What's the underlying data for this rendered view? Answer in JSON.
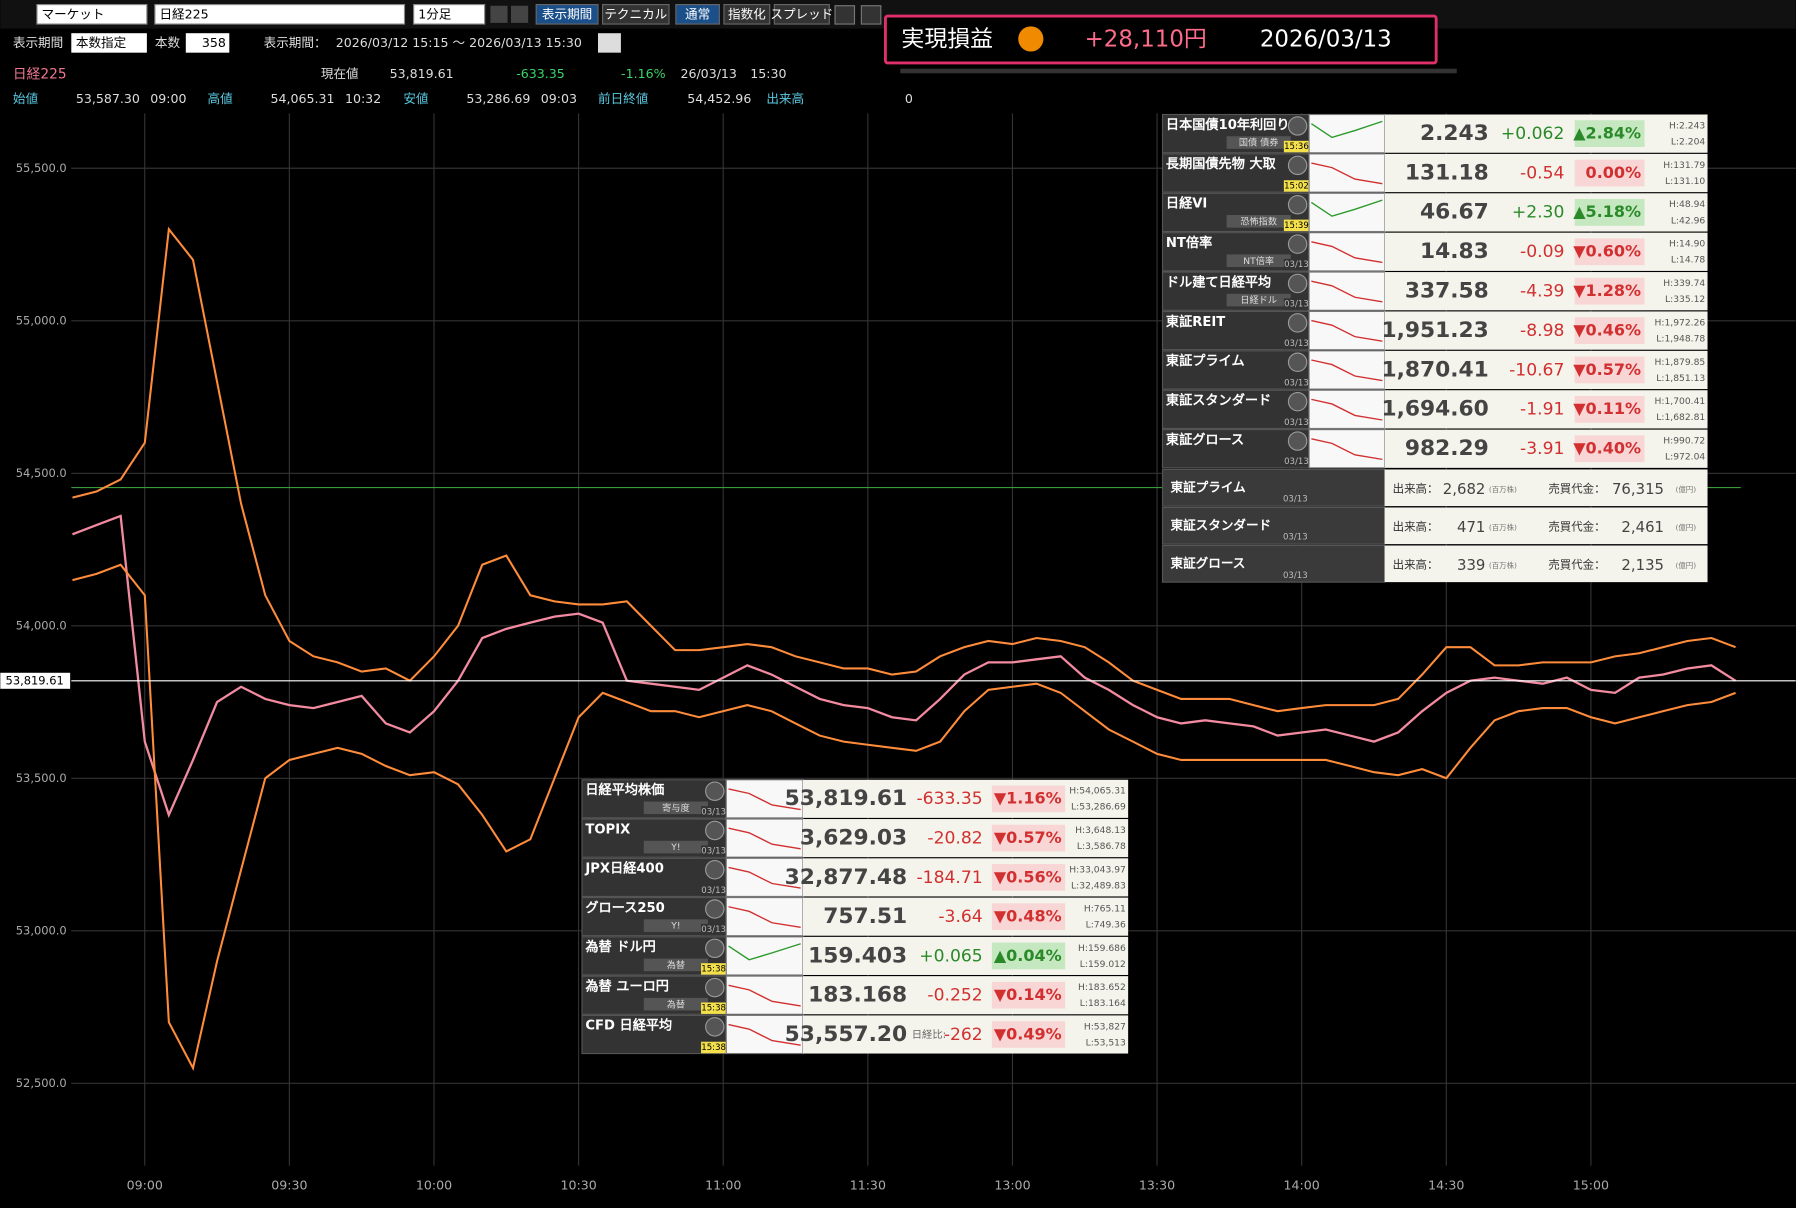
{
  "toolbar": {
    "market": "マーケット",
    "symbol": "日経225",
    "interval": "1分足",
    "buttons": [
      "表示期間",
      "テクニカル",
      "通常",
      "指数化",
      "スプレッド"
    ]
  },
  "period": {
    "label": "表示期間",
    "mode": "本数指定",
    "count_label": "本数",
    "count": 358,
    "range_label": "表示期間：",
    "range": "2026/03/12 15:15 ～ 2026/03/13 15:30"
  },
  "profit": {
    "label": "実現損益",
    "amount": "+28,110円",
    "date": "2026/03/13"
  },
  "quote": {
    "symbol": "日経225",
    "last_label": "現在値",
    "last": "53,819.61",
    "change": "-633.35",
    "change_pct": "-1.16%",
    "date": "26/03/13",
    "time": "15:30",
    "open_label": "始値",
    "open": "53,587.30",
    "open_time": "09:00",
    "high_label": "高値",
    "high": "54,065.31",
    "high_time": "10:32",
    "low_label": "安値",
    "low": "53,286.69",
    "low_time": "09:03",
    "prev_label": "前日終値",
    "prev": "54,452.96",
    "volume_label": "出来高",
    "volume": "0"
  },
  "chart_data": {
    "type": "line",
    "categories": [
      null,
      null,
      null,
      "09:00",
      null,
      null,
      null,
      null,
      null,
      "09:30",
      null,
      null,
      null,
      null,
      null,
      "10:00",
      null,
      null,
      null,
      null,
      null,
      "10:30",
      null,
      null,
      null,
      null,
      null,
      "11:00",
      null,
      null,
      null,
      null,
      null,
      "11:30",
      null,
      null,
      null,
      null,
      null,
      "13:00",
      null,
      null,
      null,
      null,
      null,
      "13:30",
      null,
      null,
      null,
      null,
      null,
      "14:00",
      null,
      null,
      null,
      null,
      null,
      "14:30",
      null,
      null,
      null,
      null,
      null,
      "15:00",
      null,
      null,
      null,
      null,
      null,
      null
    ],
    "series": [
      {
        "color": "#f28aa0",
        "values": [
          54300,
          54330,
          54360,
          53620,
          53380,
          53560,
          53750,
          53800,
          53760,
          53740,
          53730,
          53750,
          53770,
          53680,
          53650,
          53720,
          53820,
          53960,
          53990,
          54010,
          54030,
          54040,
          54010,
          53820,
          53810,
          53800,
          53790,
          53830,
          53870,
          53840,
          53800,
          53760,
          53740,
          53730,
          53700,
          53690,
          53760,
          53840,
          53880,
          53880,
          53890,
          53900,
          53830,
          53790,
          53740,
          53700,
          53680,
          53690,
          53680,
          53670,
          53640,
          53650,
          53660,
          53640,
          53620,
          53650,
          53720,
          53780,
          53820,
          53830,
          53820,
          53810,
          53830,
          53790,
          53780,
          53830,
          53840,
          53860,
          53870,
          53819.61
        ]
      },
      {
        "color": "#ff8c3a",
        "values": [
          54420,
          54440,
          54480,
          54600,
          55300,
          55200,
          54800,
          54400,
          54100,
          53950,
          53900,
          53880,
          53850,
          53860,
          53820,
          53900,
          54000,
          54200,
          54230,
          54100,
          54080,
          54070,
          54070,
          54080,
          54000,
          53920,
          53920,
          53930,
          53940,
          53930,
          53900,
          53880,
          53860,
          53860,
          53840,
          53850,
          53900,
          53930,
          53950,
          53940,
          53960,
          53950,
          53930,
          53880,
          53820,
          53790,
          53760,
          53760,
          53760,
          53740,
          53720,
          53730,
          53740,
          53740,
          53740,
          53760,
          53840,
          53930,
          53930,
          53870,
          53870,
          53880,
          53880,
          53880,
          53900,
          53910,
          53930,
          53950,
          53960,
          53930
        ]
      },
      {
        "color": "#ff8c3a",
        "values": [
          54150,
          54170,
          54200,
          54100,
          52700,
          52550,
          52900,
          53200,
          53500,
          53560,
          53580,
          53600,
          53580,
          53540,
          53510,
          53520,
          53480,
          53380,
          53260,
          53300,
          53500,
          53700,
          53780,
          53750,
          53720,
          53720,
          53700,
          53720,
          53740,
          53720,
          53680,
          53640,
          53620,
          53610,
          53600,
          53590,
          53620,
          53720,
          53790,
          53800,
          53810,
          53780,
          53720,
          53660,
          53620,
          53580,
          53560,
          53560,
          53560,
          53560,
          53560,
          53560,
          53560,
          53540,
          53520,
          53510,
          53530,
          53500,
          53600,
          53690,
          53720,
          53730,
          53730,
          53700,
          53680,
          53700,
          53720,
          53740,
          53750,
          53780
        ]
      }
    ],
    "ylim": [
      52230,
      55680
    ],
    "yticks": [
      {
        "value": 52500,
        "label": "52,500.0"
      },
      {
        "value": 53000,
        "label": "53,000.0"
      },
      {
        "value": 53500,
        "label": "53,500.0"
      },
      {
        "value": 54000,
        "label": "54,000.0"
      },
      {
        "value": 54500,
        "label": "54,500.0"
      },
      {
        "value": 55000,
        "label": "55,000.0"
      },
      {
        "value": 55500,
        "label": "55,500.0"
      }
    ],
    "grid": true,
    "current_price": {
      "value": 53819.61,
      "label": "53,819.61",
      "color": "#ffffff"
    },
    "reference_line": {
      "value": 54452.96,
      "color": "#3c9a3c"
    }
  },
  "right_panel": {
    "rows": [
      {
        "name": "日本国債10年利回り",
        "sub": "国債 債券",
        "time": "15:36",
        "value": "2.243",
        "change": "+0.062",
        "pct": "▲2.84%",
        "high": "H:2.243",
        "low": "L:2.204"
      },
      {
        "name": "長期国債先物 大取",
        "time": "15:02",
        "value": "131.18",
        "change": "-0.54",
        "pct": "0.00%",
        "high": "H:131.79",
        "low": "L:131.10"
      },
      {
        "name": "日経VI",
        "sub": "恐怖指数",
        "time": "15:39",
        "value": "46.67",
        "change": "+2.30",
        "pct": "▲5.18%",
        "high": "H:48.94",
        "low": "L:42.96"
      },
      {
        "name": "NT倍率",
        "sub": "NT倍率",
        "time": "03/13",
        "value": "14.83",
        "change": "-0.09",
        "pct": "▼0.60%",
        "high": "H:14.90",
        "low": "L:14.78"
      },
      {
        "name": "ドル建て日経平均",
        "sub": "日経ドル",
        "time": "03/13",
        "value": "337.58",
        "change": "-4.39",
        "pct": "▼1.28%",
        "high": "H:339.74",
        "low": "L:335.12"
      },
      {
        "name": "東証REIT",
        "time": "03/13",
        "value": "1,951.23",
        "change": "-8.98",
        "pct": "▼0.46%",
        "high": "H:1,972.26",
        "low": "L:1,948.78"
      },
      {
        "name": "東証プライム",
        "time": "03/13",
        "value": "1,870.41",
        "change": "-10.67",
        "pct": "▼0.57%",
        "high": "H:1,879.85",
        "low": "L:1,851.13"
      },
      {
        "name": "東証スタンダード",
        "time": "03/13",
        "value": "1,694.60",
        "change": "-1.91",
        "pct": "▼0.11%",
        "high": "H:1,700.41",
        "low": "L:1,682.81"
      },
      {
        "name": "東証グロース",
        "time": "03/13",
        "value": "982.29",
        "change": "-3.91",
        "pct": "▼0.40%",
        "high": "H:990.72",
        "low": "L:972.04"
      }
    ],
    "volume_rows": [
      {
        "name": "東証プライム",
        "time": "03/13",
        "volume_label": "出来高：",
        "volume": "2,682",
        "volume_unit": "(百万株)",
        "amount_label": "売買代金：",
        "amount": "76,315",
        "amount_unit": "(億円)"
      },
      {
        "name": "東証スタンダード",
        "time": "03/13",
        "volume_label": "出来高：",
        "volume": "471",
        "volume_unit": "(百万株)",
        "amount_label": "売買代金：",
        "amount": "2,461",
        "amount_unit": "(億円)"
      },
      {
        "name": "東証グロース",
        "time": "03/13",
        "volume_label": "出来高：",
        "volume": "339",
        "volume_unit": "(百万株)",
        "amount_label": "売買代金：",
        "amount": "2,135",
        "amount_unit": "(億円)"
      }
    ]
  },
  "bottom_panel": {
    "rows": [
      {
        "name": "日経平均株価",
        "sub": "寄与度",
        "time": "03/13",
        "value": "53,819.61",
        "change": "-633.35",
        "pct": "▼1.16%",
        "high": "H:54,065.31",
        "low": "L:53,286.69"
      },
      {
        "name": "TOPIX",
        "sub": "Y!",
        "time": "03/13",
        "value": "3,629.03",
        "change": "-20.82",
        "pct": "▼0.57%",
        "high": "H:3,648.13",
        "low": "L:3,586.78"
      },
      {
        "name": "JPX日経400",
        "time": "03/13",
        "value": "32,877.48",
        "change": "-184.71",
        "pct": "▼0.56%",
        "high": "H:33,043.97",
        "low": "L:32,489.83"
      },
      {
        "name": "グロース250",
        "sub": "Y!",
        "time": "03/13",
        "value": "757.51",
        "change": "-3.64",
        "pct": "▼0.48%",
        "high": "H:765.11",
        "low": "L:749.36"
      },
      {
        "name": "為替 ドル円",
        "sub": "為替",
        "time": "15:38",
        "value": "159.403",
        "change": "+0.065",
        "pct": "▲0.04%",
        "high": "H:159.686",
        "low": "L:159.012"
      },
      {
        "name": "為替 ユーロ円",
        "sub": "為替",
        "time": "15:38",
        "value": "183.168",
        "change": "-0.252",
        "pct": "▼0.14%",
        "high": "H:183.652",
        "low": "L:183.164"
      },
      {
        "name": "CFD 日経平均",
        "time": "15:38",
        "value": "53,557.20",
        "change_label": "日経比:",
        "change": "-262",
        "pct": "▼0.49%",
        "high": "H:53,827",
        "low": "L:53,513"
      }
    ]
  }
}
